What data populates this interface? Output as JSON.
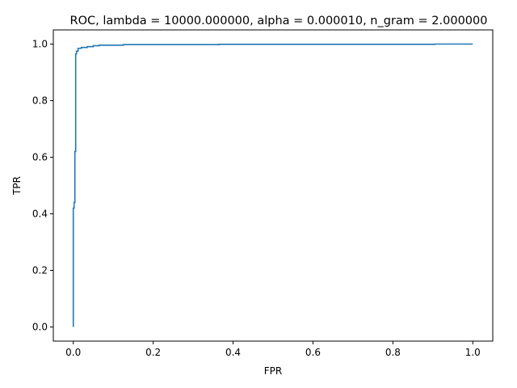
{
  "chart_data": {
    "type": "line",
    "title": "ROC, lambda = 10000.000000, alpha = 0.000010, n_gram = 2.000000",
    "xlabel": "FPR",
    "ylabel": "TPR",
    "xlim": [
      -0.05,
      1.05
    ],
    "ylim": [
      -0.05,
      1.05
    ],
    "xticks": [
      0.0,
      0.2,
      0.4,
      0.6,
      0.8,
      1.0
    ],
    "xtick_labels": [
      "0.0",
      "0.2",
      "0.4",
      "0.6",
      "0.8",
      "1.0"
    ],
    "yticks": [
      0.0,
      0.2,
      0.4,
      0.6,
      0.8,
      1.0
    ],
    "ytick_labels": [
      "0.0",
      "0.2",
      "0.4",
      "0.6",
      "0.8",
      "1.0"
    ],
    "grid": false,
    "line_color": "#1f77b4",
    "series": [
      {
        "x": [
          0.0,
          0.0,
          0.0,
          0.002,
          0.002,
          0.004,
          0.004,
          0.006,
          0.006,
          0.008,
          0.008,
          0.012,
          0.012,
          0.02,
          0.02,
          0.035,
          0.035,
          0.05,
          0.05,
          0.065,
          0.065,
          0.125,
          0.125,
          0.365,
          0.365,
          0.905,
          0.905,
          1.0
        ],
        "y": [
          0.0,
          0.42,
          0.42,
          0.42,
          0.44,
          0.44,
          0.62,
          0.62,
          0.965,
          0.965,
          0.975,
          0.975,
          0.985,
          0.985,
          0.988,
          0.988,
          0.991,
          0.991,
          0.994,
          0.994,
          0.996,
          0.996,
          0.998,
          0.998,
          0.999,
          0.999,
          1.0,
          1.0
        ]
      }
    ]
  }
}
